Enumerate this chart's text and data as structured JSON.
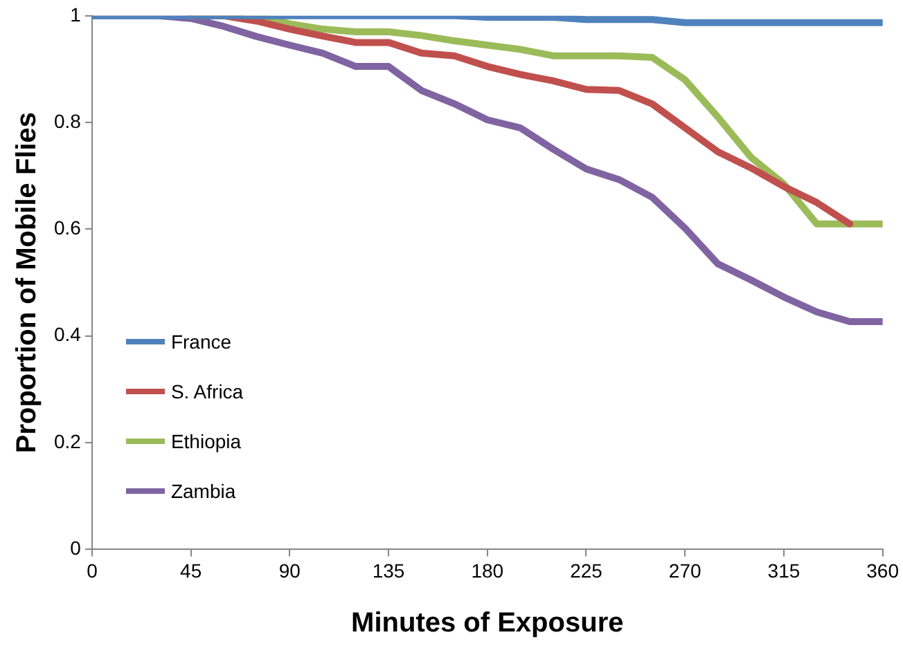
{
  "chart_data": {
    "type": "line",
    "xlabel": "Minutes of Exposure",
    "ylabel": "Proportion of Mobile Flies",
    "x": [
      0,
      15,
      30,
      45,
      60,
      75,
      90,
      105,
      120,
      135,
      150,
      165,
      180,
      195,
      210,
      225,
      240,
      255,
      270,
      285,
      300,
      315,
      330,
      345,
      360
    ],
    "xlim": [
      0,
      360
    ],
    "xticks": [
      0,
      45,
      90,
      135,
      180,
      225,
      270,
      315,
      360
    ],
    "ylim": [
      0,
      1
    ],
    "yticks": [
      0,
      0.2,
      0.4,
      0.6,
      0.8,
      1
    ],
    "grid": false,
    "legend": "bottom left",
    "marker": "none",
    "line_style": "solid",
    "series": [
      {
        "name": "France",
        "color": "#4f81bd",
        "values": [
          1,
          1,
          1,
          1,
          1,
          1,
          1,
          1,
          1,
          1,
          1,
          1,
          0.997,
          0.997,
          0.997,
          0.993,
          0.993,
          0.993,
          0.987,
          0.987,
          0.987,
          0.987,
          0.987,
          0.987,
          0.987
        ]
      },
      {
        "name": "S. Africa",
        "color": "#c0504d",
        "values": [
          null,
          null,
          null,
          1,
          1,
          0.99,
          0.975,
          0.962,
          0.95,
          0.95,
          0.93,
          0.925,
          0.905,
          0.89,
          0.878,
          0.862,
          0.86,
          0.835,
          0.79,
          0.745,
          0.715,
          0.68,
          0.65,
          0.61,
          null
        ]
      },
      {
        "name": "Ethiopia",
        "color": "#9bbb59",
        "values": [
          null,
          null,
          null,
          1,
          1,
          1,
          0.985,
          0.975,
          0.97,
          0.97,
          0.963,
          0.953,
          0.945,
          0.937,
          0.925,
          0.925,
          0.925,
          0.922,
          0.88,
          0.81,
          0.735,
          0.685,
          0.61,
          0.61,
          0.61
        ]
      },
      {
        "name": "Zambia",
        "color": "#8064a2",
        "values": [
          1,
          1,
          1,
          0.995,
          0.98,
          0.961,
          0.945,
          0.93,
          0.905,
          0.905,
          0.86,
          0.835,
          0.805,
          0.79,
          0.75,
          0.713,
          0.693,
          0.66,
          0.602,
          0.535,
          0.505,
          0.473,
          0.445,
          0.427,
          0.427
        ]
      }
    ]
  }
}
